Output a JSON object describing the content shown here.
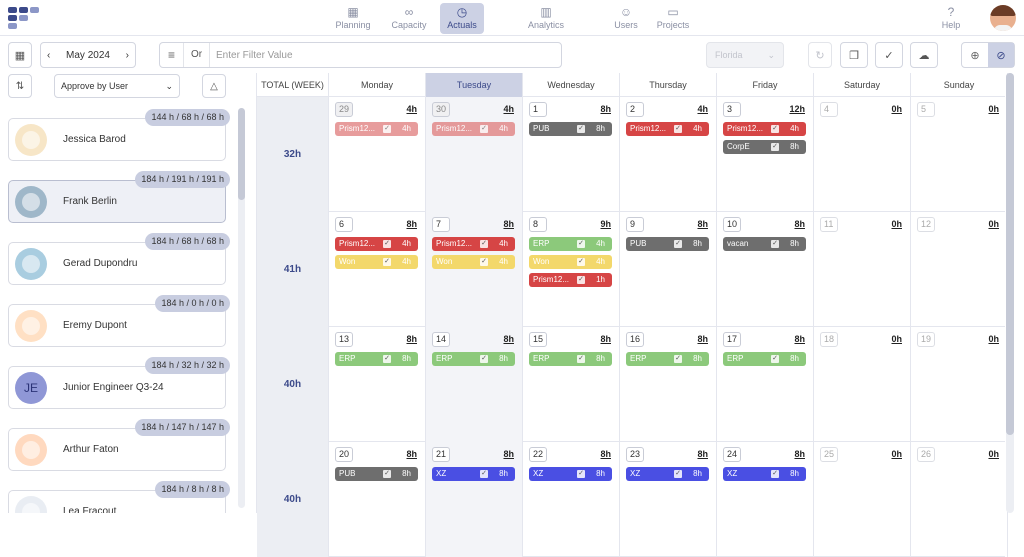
{
  "nav": {
    "items": [
      {
        "label": "Planning",
        "icon": "calendar-icon"
      },
      {
        "label": "Capacity",
        "icon": "glasses-icon"
      },
      {
        "label": "Actuals",
        "icon": "stopwatch-icon"
      },
      {
        "label": "Analytics",
        "icon": "bar-chart-icon"
      },
      {
        "label": "Users",
        "icon": "user-icon"
      },
      {
        "label": "Projects",
        "icon": "folders-icon"
      },
      {
        "label": "Help",
        "icon": "question-icon"
      }
    ],
    "active": "Actuals"
  },
  "toolbar": {
    "month": "May 2024",
    "filter_or": "Or",
    "filter_placeholder": "Enter Filter Value",
    "country": "Florida"
  },
  "left": {
    "approve_select": "Approve by User",
    "users": [
      {
        "name": "Jessica Barod",
        "hours": "144 h / 68 h / 68 h",
        "avatar": "avatar-jessica",
        "selected": false
      },
      {
        "name": "Frank Berlin",
        "hours": "184 h / 191 h / 191 h",
        "avatar": "avatar-frank",
        "selected": true
      },
      {
        "name": "Gerad Dupondru",
        "hours": "184 h / 68 h / 68 h",
        "avatar": "avatar-gerad",
        "selected": false
      },
      {
        "name": "Eremy Dupont",
        "hours": "184 h / 0 h / 0 h",
        "avatar": "avatar-eremy",
        "selected": false
      },
      {
        "name": "Junior Engineer Q3-24",
        "hours": "184 h / 32 h / 32 h",
        "avatar": "avatar-initials",
        "initials": "JE",
        "selected": false
      },
      {
        "name": "Arthur Faton",
        "hours": "184 h / 147 h / 147 h",
        "avatar": "avatar-arthur",
        "selected": false
      },
      {
        "name": "Lea Fracout",
        "hours": "184 h / 8 h / 8 h",
        "avatar": "avatar-lea",
        "selected": false
      }
    ]
  },
  "calendar": {
    "total_label": "TOTAL (WEEK)",
    "days": [
      "Monday",
      "Tuesday",
      "Wednesday",
      "Thursday",
      "Friday",
      "Saturday",
      "Sunday"
    ],
    "today_index": 1,
    "weeks": [
      {
        "total": "32h",
        "days": [
          {
            "num": "29",
            "hours": "4h",
            "prev": true,
            "entries": [
              {
                "label": "Prism12...",
                "hours": "4h",
                "color": "#e07b7b",
                "faded": true
              }
            ]
          },
          {
            "num": "30",
            "hours": "4h",
            "prev": true,
            "entries": [
              {
                "label": "Prism12...",
                "hours": "4h",
                "color": "#e07b7b",
                "faded": true
              }
            ]
          },
          {
            "num": "1",
            "hours": "8h",
            "entries": [
              {
                "label": "PUB",
                "hours": "8h",
                "color": "#6e6e6e"
              }
            ]
          },
          {
            "num": "2",
            "hours": "4h",
            "entries": [
              {
                "label": "Prism12...",
                "hours": "4h",
                "color": "#d64545"
              }
            ]
          },
          {
            "num": "3",
            "hours": "12h",
            "entries": [
              {
                "label": "Prism12...",
                "hours": "4h",
                "color": "#d64545"
              },
              {
                "label": "CorpE",
                "hours": "8h",
                "color": "#6e6e6e"
              }
            ]
          },
          {
            "num": "4",
            "hours": "0h",
            "weekend": true,
            "entries": []
          },
          {
            "num": "5",
            "hours": "0h",
            "weekend": true,
            "entries": []
          }
        ]
      },
      {
        "total": "41h",
        "days": [
          {
            "num": "6",
            "hours": "8h",
            "entries": [
              {
                "label": "Prism12...",
                "hours": "4h",
                "color": "#d64545"
              },
              {
                "label": "Won",
                "hours": "4h",
                "color": "#f3d86b"
              }
            ]
          },
          {
            "num": "7",
            "hours": "8h",
            "entries": [
              {
                "label": "Prism12...",
                "hours": "4h",
                "color": "#d64545"
              },
              {
                "label": "Won",
                "hours": "4h",
                "color": "#f3d86b"
              }
            ]
          },
          {
            "num": "8",
            "hours": "9h",
            "entries": [
              {
                "label": "ERP",
                "hours": "4h",
                "color": "#8cc97b"
              },
              {
                "label": "Won",
                "hours": "4h",
                "color": "#f3d86b"
              },
              {
                "label": "Prism12...",
                "hours": "1h",
                "color": "#d64545"
              }
            ]
          },
          {
            "num": "9",
            "hours": "8h",
            "entries": [
              {
                "label": "PUB",
                "hours": "8h",
                "color": "#6e6e6e"
              }
            ]
          },
          {
            "num": "10",
            "hours": "8h",
            "entries": [
              {
                "label": "vacan",
                "hours": "8h",
                "color": "#6e6e6e"
              }
            ]
          },
          {
            "num": "11",
            "hours": "0h",
            "weekend": true,
            "entries": []
          },
          {
            "num": "12",
            "hours": "0h",
            "weekend": true,
            "entries": []
          }
        ]
      },
      {
        "total": "40h",
        "days": [
          {
            "num": "13",
            "hours": "8h",
            "entries": [
              {
                "label": "ERP",
                "hours": "8h",
                "color": "#8cc97b"
              }
            ]
          },
          {
            "num": "14",
            "hours": "8h",
            "entries": [
              {
                "label": "ERP",
                "hours": "8h",
                "color": "#8cc97b"
              }
            ]
          },
          {
            "num": "15",
            "hours": "8h",
            "entries": [
              {
                "label": "ERP",
                "hours": "8h",
                "color": "#8cc97b"
              }
            ]
          },
          {
            "num": "16",
            "hours": "8h",
            "entries": [
              {
                "label": "ERP",
                "hours": "8h",
                "color": "#8cc97b"
              }
            ]
          },
          {
            "num": "17",
            "hours": "8h",
            "entries": [
              {
                "label": "ERP",
                "hours": "8h",
                "color": "#8cc97b"
              }
            ]
          },
          {
            "num": "18",
            "hours": "0h",
            "weekend": true,
            "entries": []
          },
          {
            "num": "19",
            "hours": "0h",
            "weekend": true,
            "entries": []
          }
        ]
      },
      {
        "total": "40h",
        "days": [
          {
            "num": "20",
            "hours": "8h",
            "entries": [
              {
                "label": "PUB",
                "hours": "8h",
                "color": "#6e6e6e"
              }
            ]
          },
          {
            "num": "21",
            "hours": "8h",
            "entries": [
              {
                "label": "XZ",
                "hours": "8h",
                "color": "#4a4fe3"
              }
            ]
          },
          {
            "num": "22",
            "hours": "8h",
            "entries": [
              {
                "label": "XZ",
                "hours": "8h",
                "color": "#4a4fe3"
              }
            ]
          },
          {
            "num": "23",
            "hours": "8h",
            "entries": [
              {
                "label": "XZ",
                "hours": "8h",
                "color": "#4a4fe3"
              }
            ]
          },
          {
            "num": "24",
            "hours": "8h",
            "entries": [
              {
                "label": "XZ",
                "hours": "8h",
                "color": "#4a4fe3"
              }
            ]
          },
          {
            "num": "25",
            "hours": "0h",
            "weekend": true,
            "entries": []
          },
          {
            "num": "26",
            "hours": "0h",
            "weekend": true,
            "entries": []
          }
        ]
      }
    ]
  }
}
